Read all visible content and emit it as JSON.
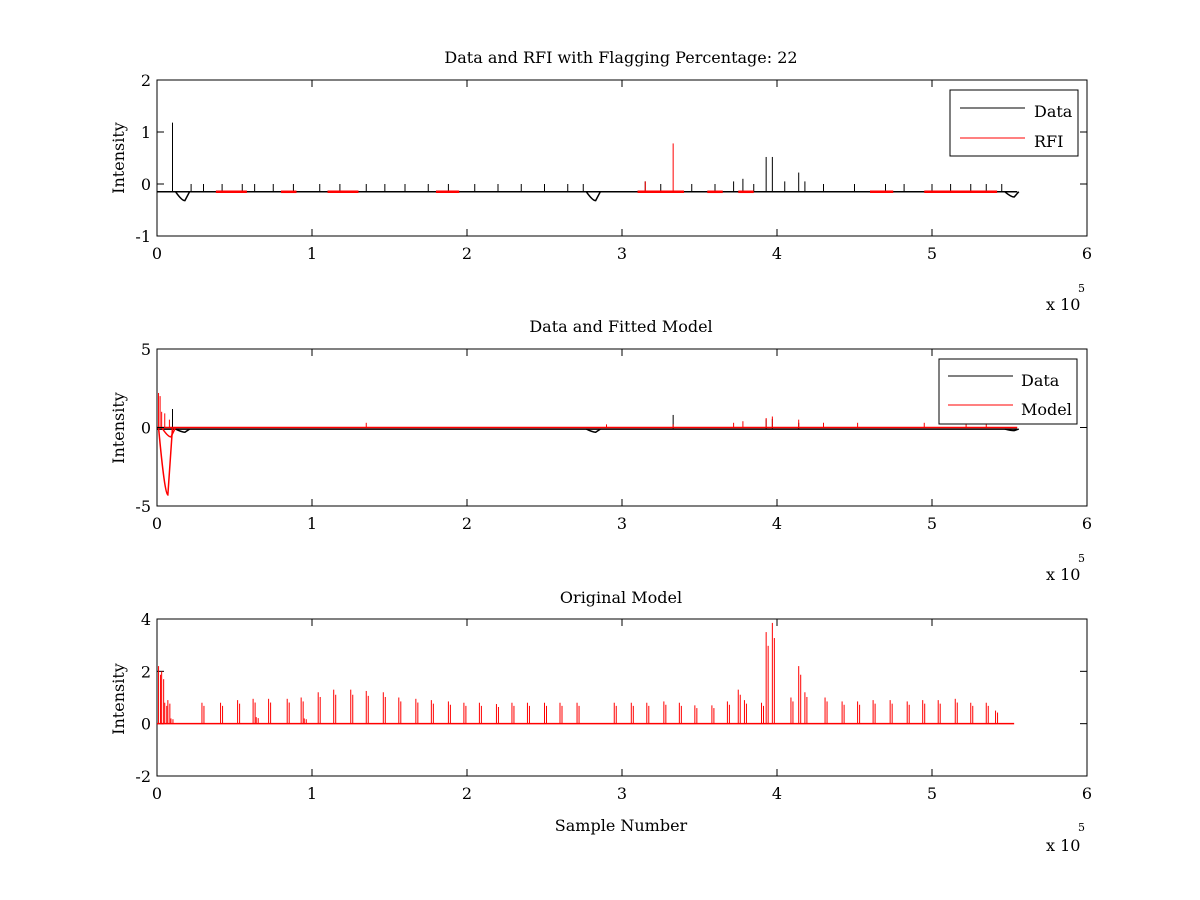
{
  "chart_data": [
    {
      "type": "line",
      "title": "Data and RFI with Flagging Percentage: 22",
      "xlabel": "",
      "ylabel": "Intensity",
      "xlim": [
        0,
        6
      ],
      "ylim": [
        -1,
        2
      ],
      "x_ticks": [
        "0",
        "1",
        "2",
        "3",
        "4",
        "5",
        "6"
      ],
      "y_ticks": [
        "-1",
        "0",
        "1",
        "2"
      ],
      "x_multiplier_base": "x 10",
      "x_multiplier_exponent": "5",
      "legend_position": "top-right",
      "series": [
        {
          "name": "Data",
          "color": "#000000",
          "baseline": -0.15,
          "spikes": [
            [
              0.1,
              1.18
            ],
            [
              0.22,
              0.0
            ],
            [
              0.3,
              0.0
            ],
            [
              0.42,
              0.0
            ],
            [
              0.55,
              0.0
            ],
            [
              0.63,
              0.0
            ],
            [
              0.75,
              0.0
            ],
            [
              0.88,
              0.0
            ],
            [
              1.05,
              0.0
            ],
            [
              1.18,
              0.0
            ],
            [
              1.35,
              0.0
            ],
            [
              1.47,
              0.0
            ],
            [
              1.6,
              0.0
            ],
            [
              1.75,
              0.0
            ],
            [
              1.88,
              0.0
            ],
            [
              2.05,
              0.0
            ],
            [
              2.2,
              0.0
            ],
            [
              2.35,
              0.0
            ],
            [
              2.5,
              0.0
            ],
            [
              2.65,
              0.0
            ],
            [
              2.75,
              0.0
            ],
            [
              3.15,
              0.05
            ],
            [
              3.25,
              0.0
            ],
            [
              3.45,
              0.0
            ],
            [
              3.6,
              0.0
            ],
            [
              3.72,
              0.05
            ],
            [
              3.78,
              0.1
            ],
            [
              3.85,
              0.0
            ],
            [
              3.93,
              0.52
            ],
            [
              3.97,
              0.52
            ],
            [
              4.05,
              0.05
            ],
            [
              4.14,
              0.22
            ],
            [
              4.18,
              0.05
            ],
            [
              4.3,
              0.0
            ],
            [
              4.5,
              0.0
            ],
            [
              4.7,
              0.0
            ],
            [
              4.82,
              0.0
            ],
            [
              5.0,
              0.0
            ],
            [
              5.12,
              0.0
            ],
            [
              5.25,
              0.0
            ],
            [
              5.35,
              0.0
            ],
            [
              5.45,
              0.0
            ]
          ],
          "dips": [
            [
              0.18,
              -0.32
            ],
            [
              2.83,
              -0.32
            ],
            [
              5.53,
              -0.25
            ]
          ]
        },
        {
          "name": "RFI",
          "color": "#ff0000",
          "baseline": -0.15,
          "segments": [
            [
              0.38,
              0.58
            ],
            [
              0.8,
              0.9
            ],
            [
              1.1,
              1.3
            ],
            [
              1.8,
              1.95
            ],
            [
              3.1,
              3.4
            ],
            [
              3.55,
              3.65
            ],
            [
              3.75,
              3.85
            ],
            [
              4.6,
              4.75
            ],
            [
              4.95,
              5.42
            ]
          ],
          "spikes": [
            [
              3.33,
              0.78
            ],
            [
              3.15,
              0.05
            ]
          ]
        }
      ]
    },
    {
      "type": "line",
      "title": "Data and Fitted Model",
      "xlabel": "",
      "ylabel": "Intensity",
      "xlim": [
        0,
        6
      ],
      "ylim": [
        -5,
        5
      ],
      "x_ticks": [
        "0",
        "1",
        "2",
        "3",
        "4",
        "5",
        "6"
      ],
      "y_ticks": [
        "-5",
        "0",
        "5"
      ],
      "x_multiplier_base": "x 10",
      "x_multiplier_exponent": "5",
      "legend_position": "top-right",
      "series": [
        {
          "name": "Data",
          "color": "#000000",
          "baseline": -0.1,
          "spikes": [
            [
              0.1,
              1.18
            ],
            [
              3.33,
              0.8
            ],
            [
              3.93,
              0.52
            ],
            [
              3.97,
              0.55
            ],
            [
              4.14,
              0.3
            ]
          ],
          "dips": [
            [
              0.18,
              -0.3
            ],
            [
              2.83,
              -0.3
            ],
            [
              5.53,
              -0.2
            ]
          ]
        },
        {
          "name": "Model",
          "color": "#ff0000",
          "baseline": 0.0,
          "spikes": [
            [
              0.01,
              2.2
            ],
            [
              0.02,
              2.0
            ],
            [
              0.03,
              1.0
            ],
            [
              0.05,
              0.9
            ],
            [
              0.08,
              0.5
            ],
            [
              1.35,
              0.3
            ],
            [
              2.9,
              0.2
            ],
            [
              3.33,
              0.2
            ],
            [
              3.72,
              0.3
            ],
            [
              3.78,
              0.4
            ],
            [
              3.93,
              0.6
            ],
            [
              3.97,
              0.7
            ],
            [
              4.14,
              0.5
            ],
            [
              4.3,
              0.3
            ],
            [
              4.52,
              0.3
            ],
            [
              4.95,
              0.3
            ],
            [
              5.22,
              0.2
            ],
            [
              5.35,
              0.2
            ]
          ],
          "dips": [
            [
              0.07,
              -4.3
            ],
            [
              0.09,
              -0.6
            ]
          ]
        }
      ]
    },
    {
      "type": "line",
      "title": "Original Model",
      "xlabel": "Sample Number",
      "ylabel": "Intensity",
      "xlim": [
        0,
        6
      ],
      "ylim": [
        -2,
        4
      ],
      "x_ticks": [
        "0",
        "1",
        "2",
        "3",
        "4",
        "5",
        "6"
      ],
      "y_ticks": [
        "-2",
        "0",
        "2",
        "4"
      ],
      "x_multiplier_base": "x 10",
      "x_multiplier_exponent": "5",
      "series": [
        {
          "name": "",
          "color": "#ff0000",
          "baseline": 0.0,
          "x_end": 5.53,
          "spikes": [
            [
              0.01,
              2.2
            ],
            [
              0.03,
              2.0
            ],
            [
              0.05,
              0.8
            ],
            [
              0.07,
              0.9
            ],
            [
              0.09,
              0.2
            ],
            [
              0.29,
              0.8
            ],
            [
              0.41,
              0.8
            ],
            [
              0.52,
              0.9
            ],
            [
              0.62,
              0.95
            ],
            [
              0.64,
              0.25
            ],
            [
              0.72,
              0.95
            ],
            [
              0.84,
              0.95
            ],
            [
              0.93,
              1.0
            ],
            [
              0.95,
              0.2
            ],
            [
              1.04,
              1.2
            ],
            [
              1.14,
              1.3
            ],
            [
              1.25,
              1.3
            ],
            [
              1.35,
              1.25
            ],
            [
              1.46,
              1.2
            ],
            [
              1.56,
              1.0
            ],
            [
              1.67,
              0.95
            ],
            [
              1.77,
              0.9
            ],
            [
              1.88,
              0.85
            ],
            [
              1.98,
              0.8
            ],
            [
              2.08,
              0.8
            ],
            [
              2.19,
              0.75
            ],
            [
              2.29,
              0.8
            ],
            [
              2.39,
              0.8
            ],
            [
              2.5,
              0.8
            ],
            [
              2.6,
              0.8
            ],
            [
              2.71,
              0.8
            ],
            [
              2.95,
              0.8
            ],
            [
              3.06,
              0.8
            ],
            [
              3.16,
              0.8
            ],
            [
              3.27,
              0.85
            ],
            [
              3.37,
              0.8
            ],
            [
              3.47,
              0.7
            ],
            [
              3.58,
              0.7
            ],
            [
              3.68,
              0.85
            ],
            [
              3.75,
              1.3
            ],
            [
              3.79,
              0.9
            ],
            [
              3.9,
              0.8
            ],
            [
              3.93,
              3.5
            ],
            [
              3.97,
              3.85
            ],
            [
              4.09,
              1.0
            ],
            [
              4.14,
              2.2
            ],
            [
              4.18,
              1.2
            ],
            [
              4.31,
              1.0
            ],
            [
              4.42,
              0.85
            ],
            [
              4.52,
              0.85
            ],
            [
              4.62,
              0.9
            ],
            [
              4.73,
              0.9
            ],
            [
              4.84,
              0.85
            ],
            [
              4.94,
              0.9
            ],
            [
              5.04,
              0.9
            ],
            [
              5.15,
              0.95
            ],
            [
              5.25,
              0.8
            ],
            [
              5.35,
              0.8
            ],
            [
              5.41,
              0.5
            ]
          ]
        }
      ]
    }
  ]
}
